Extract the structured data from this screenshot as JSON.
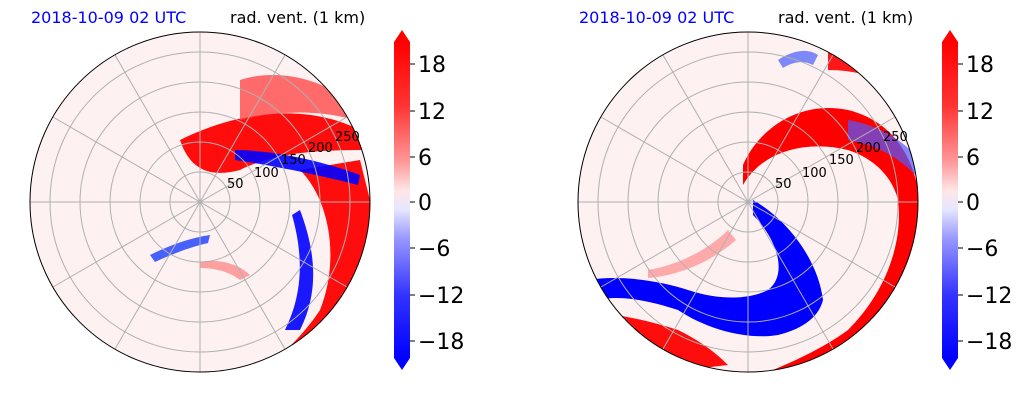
{
  "panels": [
    {
      "title_left": "2018-10-09 02 UTC",
      "title_right": "rad. vent. (1 km)",
      "range_ring_labels": [
        "50",
        "100",
        "150",
        "200",
        "250"
      ]
    },
    {
      "title_left": "2018-10-09 02 UTC",
      "title_right": "rad. vent. (1 km)",
      "range_ring_labels": [
        "50",
        "100",
        "150",
        "200",
        "250"
      ]
    }
  ],
  "colors": {
    "positive": "#ff0000",
    "negative": "#0000ff",
    "neutral": "#ffffff",
    "title_date": "#0000ff"
  },
  "chart_data": [
    {
      "type": "heatmap",
      "projection": "polar",
      "title": "2018-10-09 02 UTC rad. vent. (1 km)",
      "range_rings": [
        50,
        100,
        150,
        200,
        250
      ],
      "colorbar": {
        "ticks": [
          18,
          12,
          6,
          0,
          -6,
          -12,
          -18
        ],
        "tick_labels": [
          "18",
          "12",
          "6",
          "0",
          "−6",
          "−12",
          "−18"
        ],
        "range": [
          -20,
          20
        ],
        "extend": "both",
        "cmap": "bwr"
      }
    },
    {
      "type": "heatmap",
      "projection": "polar",
      "title": "2018-10-09 02 UTC rad. vent. (1 km)",
      "range_rings": [
        50,
        100,
        150,
        200,
        250
      ],
      "colorbar": {
        "ticks": [
          18,
          12,
          6,
          0,
          -6,
          -12,
          -18
        ],
        "tick_labels": [
          "18",
          "12",
          "6",
          "0",
          "−6",
          "−12",
          "−18"
        ],
        "range": [
          -20,
          20
        ],
        "extend": "both",
        "cmap": "bwr"
      }
    }
  ]
}
